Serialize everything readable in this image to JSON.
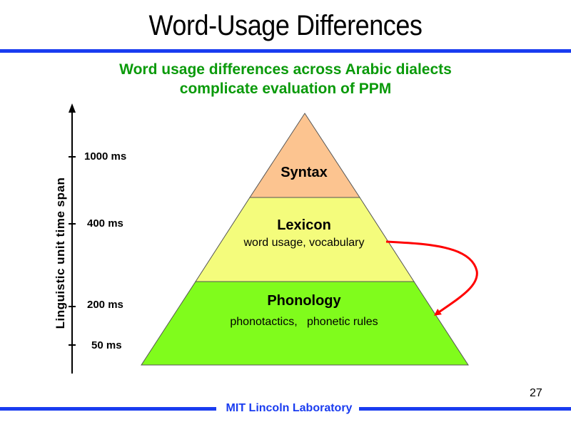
{
  "slide": {
    "title": "Word-Usage Differences",
    "subtitle_line1": "Word usage differences across Arabic dialects",
    "subtitle_line2": "complicate evaluation of PPM",
    "page_number": "27",
    "footer": "MIT Lincoln Laboratory"
  },
  "axis": {
    "label": "Linguistic unit time span",
    "ticks": [
      "1000 ms",
      "400 ms",
      "200 ms",
      "50 ms"
    ]
  },
  "pyramid": {
    "levels": [
      {
        "title": "Syntax",
        "description": "",
        "color": "#fcc490"
      },
      {
        "title": "Lexicon",
        "description": "word usage, vocabulary",
        "color": "#f4fc7c"
      },
      {
        "title": "Phonology",
        "description": "phonotactics,   phonetic rules",
        "color": "#80fc1c"
      }
    ],
    "arrow": {
      "from": "Lexicon",
      "to": "Phonology",
      "color": "#ff0000"
    }
  },
  "colors": {
    "accent_blue": "#1a3cf0",
    "subtitle_green": "#0a9a0a"
  }
}
